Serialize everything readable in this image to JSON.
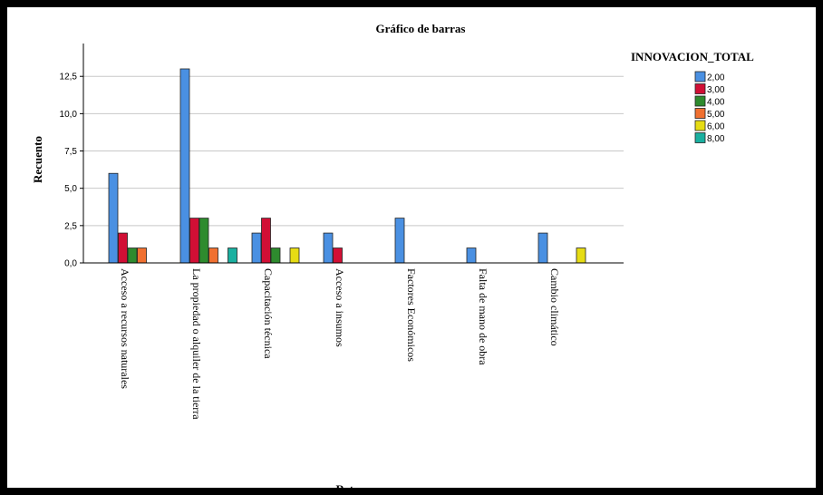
{
  "chart_data": {
    "type": "bar",
    "title": "Gráfico de barras",
    "xlabel": "Retos",
    "ylabel": "Recuento",
    "ylim": [
      0,
      14.7
    ],
    "yticks": [
      0,
      2.5,
      5,
      7.5,
      10,
      12.5
    ],
    "ytick_labels": [
      "0,0",
      "2,5",
      "5,0",
      "7,5",
      "10,0",
      "12,5"
    ],
    "grid": true,
    "legend_title": "INNOVACION_TOTAL",
    "legend_position": "top-right",
    "categories": [
      "Acceso a recursos naturales",
      "La propiedad o alquiler de la tierra",
      "Capacitación técnica",
      "Acceso a insumos",
      "Factores Económicos",
      "Falta de mano de obra",
      "Cambio climático"
    ],
    "series": [
      {
        "name": "2,00",
        "color": "#4a90e2",
        "values": [
          6,
          13,
          2,
          2,
          3,
          1,
          2
        ]
      },
      {
        "name": "3,00",
        "color": "#d10f35",
        "values": [
          2,
          3,
          3,
          1,
          0,
          0,
          0
        ]
      },
      {
        "name": "4,00",
        "color": "#2e8b2e",
        "values": [
          1,
          3,
          1,
          0,
          0,
          0,
          0
        ]
      },
      {
        "name": "5,00",
        "color": "#f07030",
        "values": [
          1,
          1,
          0,
          0,
          0,
          0,
          0
        ]
      },
      {
        "name": "6,00",
        "color": "#e6dc14",
        "values": [
          0,
          0,
          1,
          0,
          0,
          0,
          1
        ]
      },
      {
        "name": "8,00",
        "color": "#1ab0a0",
        "values": [
          0,
          1,
          0,
          0,
          0,
          0,
          0
        ]
      }
    ]
  }
}
